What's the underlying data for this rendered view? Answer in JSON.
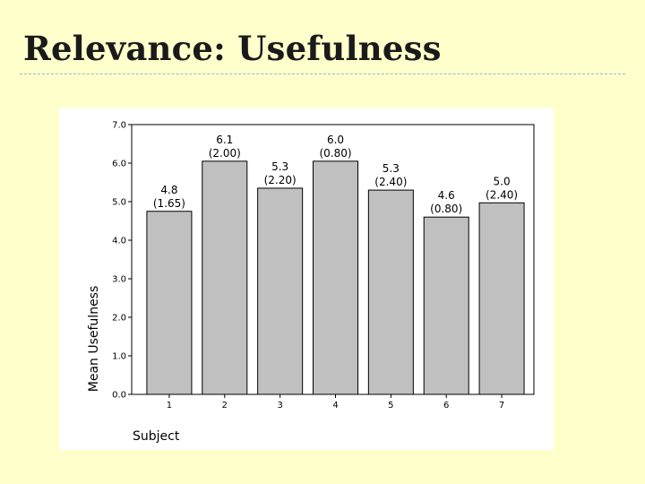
{
  "slide": {
    "title": "Relevance: Usefulness"
  },
  "chart_data": {
    "type": "bar",
    "categories": [
      "1",
      "2",
      "3",
      "4",
      "5",
      "6",
      "7"
    ],
    "values": [
      4.75,
      6.05,
      5.35,
      6.05,
      5.3,
      4.6,
      4.97
    ],
    "bar_labels": [
      [
        "4.8",
        "(1.65)"
      ],
      [
        "6.1",
        "(2.00)"
      ],
      [
        "5.3",
        "(2.20)"
      ],
      [
        "6.0",
        "(0.80)"
      ],
      [
        "5.3",
        "(2.40)"
      ],
      [
        "4.6",
        "(0.80)"
      ],
      [
        "5.0",
        "(2.40)"
      ]
    ],
    "xlabel": "Subject",
    "ylabel": "Mean Usefulness",
    "ylim": [
      0,
      7
    ],
    "yticks": [
      "0.0",
      "1.0",
      "2.0",
      "3.0",
      "4.0",
      "5.0",
      "6.0",
      "7.0"
    ],
    "bar_color": "#C0C0C0",
    "grid": false
  }
}
